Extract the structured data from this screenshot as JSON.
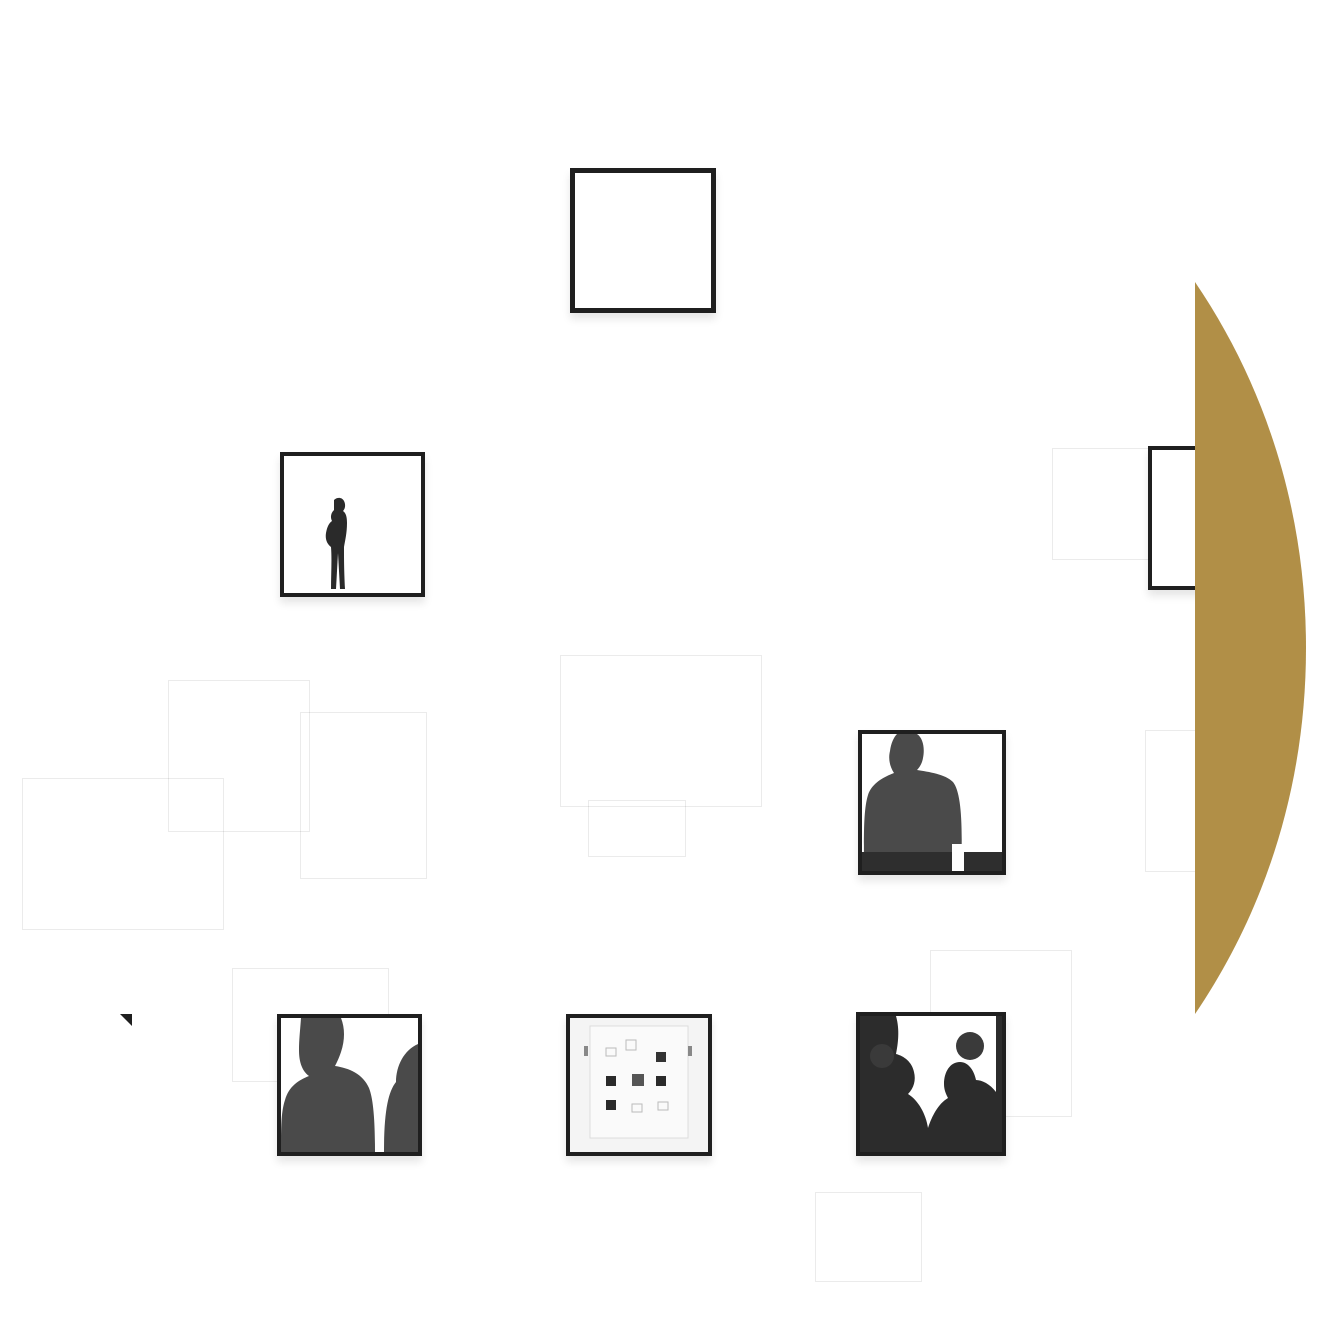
{
  "scene": {
    "description_kind": "gallery wall photo",
    "frame_color": "#1f1f1f",
    "wall_color": "#ffffff",
    "accent_color": "#b18f47"
  },
  "frames": [
    {
      "id": "frame-empty-top",
      "content": "empty"
    },
    {
      "id": "frame-small-figure",
      "content": "standing-person-silhouette"
    },
    {
      "id": "frame-right-edge",
      "content": "cropped"
    },
    {
      "id": "frame-man-back",
      "content": "man-from-behind"
    },
    {
      "id": "frame-two-heads",
      "content": "two-head-silhouettes"
    },
    {
      "id": "frame-gallery-mini",
      "content": "miniature-gallery-wall"
    },
    {
      "id": "frame-crowd",
      "content": "crowd-silhouettes"
    }
  ]
}
